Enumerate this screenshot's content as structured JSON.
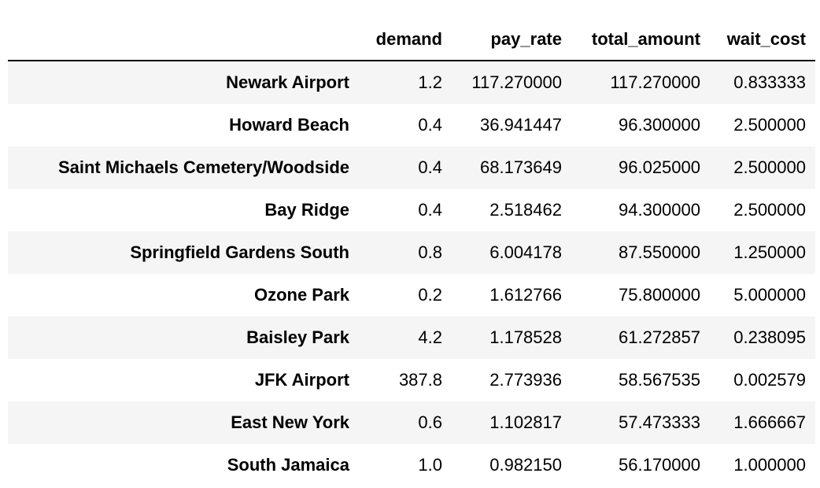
{
  "table": {
    "headers": [
      "",
      "demand",
      "pay_rate",
      "total_amount",
      "wait_cost"
    ],
    "rows": [
      {
        "name": "Newark Airport",
        "demand": "1.2",
        "pay_rate": "117.270000",
        "total_amount": "117.270000",
        "wait_cost": "0.833333"
      },
      {
        "name": "Howard Beach",
        "demand": "0.4",
        "pay_rate": "36.941447",
        "total_amount": "96.300000",
        "wait_cost": "2.500000"
      },
      {
        "name": "Saint Michaels Cemetery/Woodside",
        "demand": "0.4",
        "pay_rate": "68.173649",
        "total_amount": "96.025000",
        "wait_cost": "2.500000"
      },
      {
        "name": "Bay Ridge",
        "demand": "0.4",
        "pay_rate": "2.518462",
        "total_amount": "94.300000",
        "wait_cost": "2.500000"
      },
      {
        "name": "Springfield Gardens South",
        "demand": "0.8",
        "pay_rate": "6.004178",
        "total_amount": "87.550000",
        "wait_cost": "1.250000"
      },
      {
        "name": "Ozone Park",
        "demand": "0.2",
        "pay_rate": "1.612766",
        "total_amount": "75.800000",
        "wait_cost": "5.000000"
      },
      {
        "name": "Baisley Park",
        "demand": "4.2",
        "pay_rate": "1.178528",
        "total_amount": "61.272857",
        "wait_cost": "0.238095"
      },
      {
        "name": "JFK Airport",
        "demand": "387.8",
        "pay_rate": "2.773936",
        "total_amount": "58.567535",
        "wait_cost": "0.002579"
      },
      {
        "name": "East New York",
        "demand": "0.6",
        "pay_rate": "1.102817",
        "total_amount": "57.473333",
        "wait_cost": "1.666667"
      },
      {
        "name": "South Jamaica",
        "demand": "1.0",
        "pay_rate": "0.982150",
        "total_amount": "56.170000",
        "wait_cost": "1.000000"
      }
    ]
  },
  "colors": {
    "stripe": "#f5f5f5",
    "header_rule": "#000000",
    "text": "#000000"
  }
}
